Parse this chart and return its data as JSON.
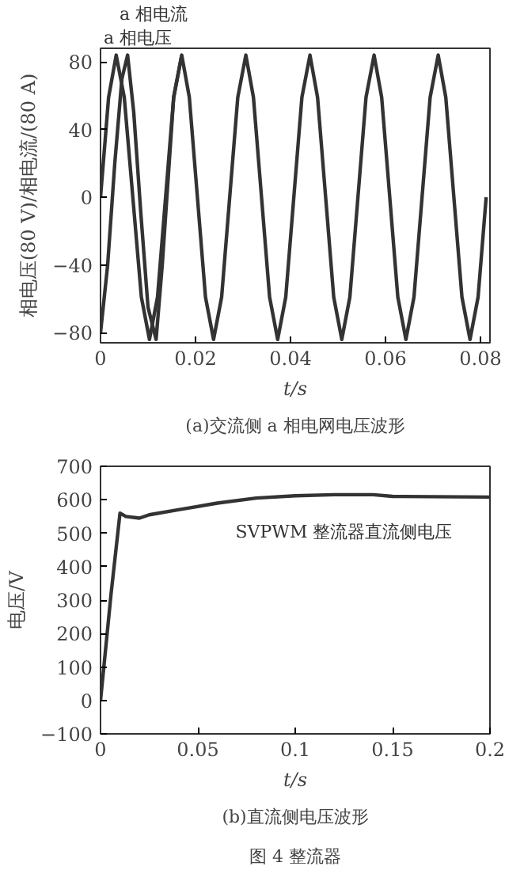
{
  "chart_data": [
    {
      "type": "line",
      "title": "(a)交流侧 a 相电网电压波形",
      "xlabel": "t/s",
      "ylabel": "相电压(80 V)/相电流/(80 A)",
      "xlim": [
        0,
        0.082
      ],
      "ylim": [
        -86,
        88
      ],
      "xticks": [
        0,
        0.02,
        0.04,
        0.06,
        0.08
      ],
      "yticks": [
        -80,
        -40,
        0,
        40,
        80
      ],
      "series": [
        {
          "name": "a 相电压",
          "color": "#333333",
          "x": [
            0,
            0.0017,
            0.0033,
            0.005,
            0.0068,
            0.0086,
            0.0103,
            0.012,
            0.0137,
            0.0154,
            0.0171,
            0.0187,
            0.0204,
            0.0221,
            0.0238,
            0.0255,
            0.0272,
            0.0289,
            0.0306,
            0.0322,
            0.0339,
            0.0356,
            0.0373,
            0.039,
            0.0407,
            0.0424,
            0.0441,
            0.0457,
            0.0474,
            0.0491,
            0.0508,
            0.0525,
            0.0542,
            0.0559,
            0.0576,
            0.0592,
            0.0609,
            0.0626,
            0.0643,
            0.066,
            0.0677,
            0.0694,
            0.0711,
            0.0727,
            0.0744,
            0.0761,
            0.0778,
            0.0795,
            0.0812
          ],
          "values": [
            0,
            59,
            84,
            59,
            0,
            -59,
            -84,
            -59,
            0,
            59,
            84,
            59,
            0,
            -59,
            -84,
            -59,
            0,
            59,
            84,
            59,
            0,
            -59,
            -84,
            -59,
            0,
            59,
            84,
            59,
            0,
            -59,
            -84,
            -59,
            0,
            59,
            84,
            59,
            0,
            -59,
            -84,
            -59,
            0,
            59,
            84,
            59,
            0,
            -59,
            -84,
            -59,
            0
          ]
        },
        {
          "name": "a 相电流",
          "color": "#333333",
          "x": [
            0,
            0.0015,
            0.003,
            0.0045,
            0.0057,
            0.007,
            0.0085,
            0.01,
            0.0117,
            0.013,
            0.0154,
            0.0171
          ],
          "values": [
            -80,
            -40,
            20,
            70,
            84,
            50,
            -10,
            -65,
            -84,
            -40,
            59,
            84
          ]
        }
      ]
    },
    {
      "type": "line",
      "title": "(b)直流侧电压波形",
      "xlabel": "t/s",
      "ylabel": "电压/V",
      "xlim": [
        0,
        0.2
      ],
      "ylim": [
        -100,
        700
      ],
      "xticks": [
        0,
        0.05,
        0.1,
        0.15,
        {
          "value": 0.2,
          "label": "0.2"
        }
      ],
      "yticks": [
        -100,
        0,
        100,
        200,
        300,
        400,
        500,
        600,
        700
      ],
      "annotations": [
        "图 4 整流器"
      ],
      "series": [
        {
          "name": "SVPWM 整流器直流侧电压",
          "color": "#333333",
          "x": [
            0,
            0.0054,
            0.01,
            0.013,
            0.02,
            0.025,
            0.04,
            0.06,
            0.08,
            0.1,
            0.12,
            0.14,
            0.15,
            0.2
          ],
          "values": [
            0,
            318,
            560,
            550,
            545,
            555,
            570,
            590,
            605,
            612,
            615,
            615,
            610,
            608
          ]
        }
      ]
    }
  ]
}
